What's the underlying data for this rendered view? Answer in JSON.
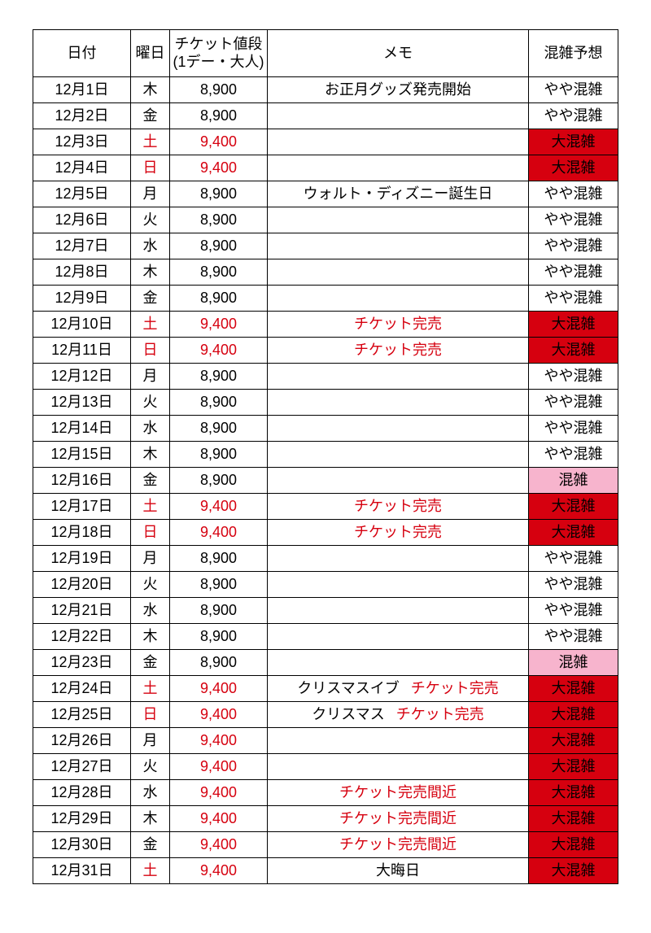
{
  "colors": {
    "border": "#000000",
    "text_black": "#000000",
    "text_red": "#d6000f",
    "bg_red": "#d6000f",
    "bg_pink": "#f7b4cd",
    "bg_white": "#ffffff"
  },
  "header": {
    "date": "日付",
    "dow": "曜日",
    "price_line1": "チケット値段",
    "price_line2": "(1デー・大人)",
    "memo": "メモ",
    "crowd": "混雑予想"
  },
  "rows": [
    {
      "date": "12月1日",
      "dow": "木",
      "dow_color": "black",
      "price": "8,900",
      "price_color": "black",
      "memo": [
        {
          "t": "お正月グッズ発売開始",
          "c": "black"
        }
      ],
      "crowd": "やや混雑",
      "crowd_bg": "white",
      "crowd_color": "black"
    },
    {
      "date": "12月2日",
      "dow": "金",
      "dow_color": "black",
      "price": "8,900",
      "price_color": "black",
      "memo": [],
      "crowd": "やや混雑",
      "crowd_bg": "white",
      "crowd_color": "black"
    },
    {
      "date": "12月3日",
      "dow": "土",
      "dow_color": "red",
      "price": "9,400",
      "price_color": "red",
      "memo": [],
      "crowd": "大混雑",
      "crowd_bg": "red",
      "crowd_color": "black"
    },
    {
      "date": "12月4日",
      "dow": "日",
      "dow_color": "red",
      "price": "9,400",
      "price_color": "red",
      "memo": [],
      "crowd": "大混雑",
      "crowd_bg": "red",
      "crowd_color": "black"
    },
    {
      "date": "12月5日",
      "dow": "月",
      "dow_color": "black",
      "price": "8,900",
      "price_color": "black",
      "memo": [
        {
          "t": "ウォルト・ディズニー誕生日",
          "c": "black"
        }
      ],
      "crowd": "やや混雑",
      "crowd_bg": "white",
      "crowd_color": "black"
    },
    {
      "date": "12月6日",
      "dow": "火",
      "dow_color": "black",
      "price": "8,900",
      "price_color": "black",
      "memo": [],
      "crowd": "やや混雑",
      "crowd_bg": "white",
      "crowd_color": "black"
    },
    {
      "date": "12月7日",
      "dow": "水",
      "dow_color": "black",
      "price": "8,900",
      "price_color": "black",
      "memo": [],
      "crowd": "やや混雑",
      "crowd_bg": "white",
      "crowd_color": "black"
    },
    {
      "date": "12月8日",
      "dow": "木",
      "dow_color": "black",
      "price": "8,900",
      "price_color": "black",
      "memo": [],
      "crowd": "やや混雑",
      "crowd_bg": "white",
      "crowd_color": "black"
    },
    {
      "date": "12月9日",
      "dow": "金",
      "dow_color": "black",
      "price": "8,900",
      "price_color": "black",
      "memo": [],
      "crowd": "やや混雑",
      "crowd_bg": "white",
      "crowd_color": "black"
    },
    {
      "date": "12月10日",
      "dow": "土",
      "dow_color": "red",
      "price": "9,400",
      "price_color": "red",
      "memo": [
        {
          "t": "チケット完売",
          "c": "red"
        }
      ],
      "crowd": "大混雑",
      "crowd_bg": "red",
      "crowd_color": "black"
    },
    {
      "date": "12月11日",
      "dow": "日",
      "dow_color": "red",
      "price": "9,400",
      "price_color": "red",
      "memo": [
        {
          "t": "チケット完売",
          "c": "red"
        }
      ],
      "crowd": "大混雑",
      "crowd_bg": "red",
      "crowd_color": "black"
    },
    {
      "date": "12月12日",
      "dow": "月",
      "dow_color": "black",
      "price": "8,900",
      "price_color": "black",
      "memo": [],
      "crowd": "やや混雑",
      "crowd_bg": "white",
      "crowd_color": "black"
    },
    {
      "date": "12月13日",
      "dow": "火",
      "dow_color": "black",
      "price": "8,900",
      "price_color": "black",
      "memo": [],
      "crowd": "やや混雑",
      "crowd_bg": "white",
      "crowd_color": "black"
    },
    {
      "date": "12月14日",
      "dow": "水",
      "dow_color": "black",
      "price": "8,900",
      "price_color": "black",
      "memo": [],
      "crowd": "やや混雑",
      "crowd_bg": "white",
      "crowd_color": "black"
    },
    {
      "date": "12月15日",
      "dow": "木",
      "dow_color": "black",
      "price": "8,900",
      "price_color": "black",
      "memo": [],
      "crowd": "やや混雑",
      "crowd_bg": "white",
      "crowd_color": "black"
    },
    {
      "date": "12月16日",
      "dow": "金",
      "dow_color": "black",
      "price": "8,900",
      "price_color": "black",
      "memo": [],
      "crowd": "混雑",
      "crowd_bg": "pink",
      "crowd_color": "black"
    },
    {
      "date": "12月17日",
      "dow": "土",
      "dow_color": "red",
      "price": "9,400",
      "price_color": "red",
      "memo": [
        {
          "t": "チケット完売",
          "c": "red"
        }
      ],
      "crowd": "大混雑",
      "crowd_bg": "red",
      "crowd_color": "black"
    },
    {
      "date": "12月18日",
      "dow": "日",
      "dow_color": "red",
      "price": "9,400",
      "price_color": "red",
      "memo": [
        {
          "t": "チケット完売",
          "c": "red"
        }
      ],
      "crowd": "大混雑",
      "crowd_bg": "red",
      "crowd_color": "black"
    },
    {
      "date": "12月19日",
      "dow": "月",
      "dow_color": "black",
      "price": "8,900",
      "price_color": "black",
      "memo": [],
      "crowd": "やや混雑",
      "crowd_bg": "white",
      "crowd_color": "black"
    },
    {
      "date": "12月20日",
      "dow": "火",
      "dow_color": "black",
      "price": "8,900",
      "price_color": "black",
      "memo": [],
      "crowd": "やや混雑",
      "crowd_bg": "white",
      "crowd_color": "black"
    },
    {
      "date": "12月21日",
      "dow": "水",
      "dow_color": "black",
      "price": "8,900",
      "price_color": "black",
      "memo": [],
      "crowd": "やや混雑",
      "crowd_bg": "white",
      "crowd_color": "black"
    },
    {
      "date": "12月22日",
      "dow": "木",
      "dow_color": "black",
      "price": "8,900",
      "price_color": "black",
      "memo": [],
      "crowd": "やや混雑",
      "crowd_bg": "white",
      "crowd_color": "black"
    },
    {
      "date": "12月23日",
      "dow": "金",
      "dow_color": "black",
      "price": "8,900",
      "price_color": "black",
      "memo": [],
      "crowd": "混雑",
      "crowd_bg": "pink",
      "crowd_color": "black"
    },
    {
      "date": "12月24日",
      "dow": "土",
      "dow_color": "red",
      "price": "9,400",
      "price_color": "red",
      "memo": [
        {
          "t": "クリスマスイブ",
          "c": "black"
        },
        {
          "t": "チケット完売",
          "c": "red"
        }
      ],
      "crowd": "大混雑",
      "crowd_bg": "red",
      "crowd_color": "black"
    },
    {
      "date": "12月25日",
      "dow": "日",
      "dow_color": "red",
      "price": "9,400",
      "price_color": "red",
      "memo": [
        {
          "t": "クリスマス",
          "c": "black"
        },
        {
          "t": "チケット完売",
          "c": "red"
        }
      ],
      "crowd": "大混雑",
      "crowd_bg": "red",
      "crowd_color": "black"
    },
    {
      "date": "12月26日",
      "dow": "月",
      "dow_color": "black",
      "price": "9,400",
      "price_color": "red",
      "memo": [],
      "crowd": "大混雑",
      "crowd_bg": "red",
      "crowd_color": "black"
    },
    {
      "date": "12月27日",
      "dow": "火",
      "dow_color": "black",
      "price": "9,400",
      "price_color": "red",
      "memo": [],
      "crowd": "大混雑",
      "crowd_bg": "red",
      "crowd_color": "black"
    },
    {
      "date": "12月28日",
      "dow": "水",
      "dow_color": "black",
      "price": "9,400",
      "price_color": "red",
      "memo": [
        {
          "t": "チケット完売間近",
          "c": "red"
        }
      ],
      "crowd": "大混雑",
      "crowd_bg": "red",
      "crowd_color": "black"
    },
    {
      "date": "12月29日",
      "dow": "木",
      "dow_color": "black",
      "price": "9,400",
      "price_color": "red",
      "memo": [
        {
          "t": "チケット完売間近",
          "c": "red"
        }
      ],
      "crowd": "大混雑",
      "crowd_bg": "red",
      "crowd_color": "black"
    },
    {
      "date": "12月30日",
      "dow": "金",
      "dow_color": "black",
      "price": "9,400",
      "price_color": "red",
      "memo": [
        {
          "t": "チケット完売間近",
          "c": "red"
        }
      ],
      "crowd": "大混雑",
      "crowd_bg": "red",
      "crowd_color": "black"
    },
    {
      "date": "12月31日",
      "dow": "土",
      "dow_color": "red",
      "price": "9,400",
      "price_color": "red",
      "memo": [
        {
          "t": "大晦日",
          "c": "black"
        }
      ],
      "crowd": "大混雑",
      "crowd_bg": "red",
      "crowd_color": "black"
    }
  ]
}
